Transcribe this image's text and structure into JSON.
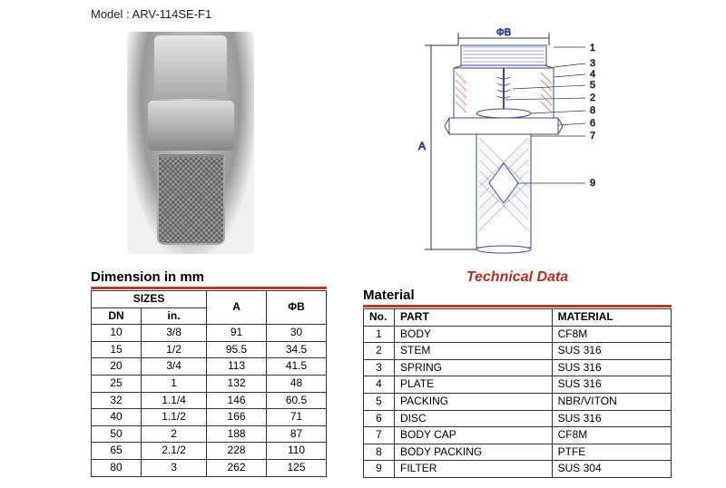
{
  "model_label": "Model : ARV-114SE-F1",
  "diagram": {
    "label_phiB_top": "ΦB",
    "label_A_left": "A",
    "callouts": [
      "1",
      "3",
      "4",
      "5",
      "2",
      "8",
      "6",
      "7",
      "9"
    ],
    "line_color": "#3a4a8a",
    "hatch_color": "#c94a2f"
  },
  "technical_data_title": "Technical Data",
  "dimension": {
    "title": "Dimension in mm",
    "header_group": "SIZES",
    "columns": [
      "DN",
      "in.",
      "A",
      "ΦB"
    ],
    "rows": [
      [
        "10",
        "3/8",
        "91",
        "30"
      ],
      [
        "15",
        "1/2",
        "95.5",
        "34.5"
      ],
      [
        "20",
        "3/4",
        "113",
        "41.5"
      ],
      [
        "25",
        "1",
        "132",
        "48"
      ],
      [
        "32",
        "1.1/4",
        "146",
        "60.5"
      ],
      [
        "40",
        "1.1/2",
        "166",
        "71"
      ],
      [
        "50",
        "2",
        "188",
        "87"
      ],
      [
        "65",
        "2.1/2",
        "228",
        "110"
      ],
      [
        "80",
        "3",
        "262",
        "125"
      ]
    ]
  },
  "material": {
    "title": "Material",
    "columns": [
      "No.",
      "PART",
      "MATERIAL"
    ],
    "rows": [
      [
        "1",
        "BODY",
        "CF8M"
      ],
      [
        "2",
        "STEM",
        "SUS 316"
      ],
      [
        "3",
        "SPRING",
        "SUS 316"
      ],
      [
        "4",
        "PLATE",
        "SUS 316"
      ],
      [
        "5",
        "PACKING",
        "NBR/VITON"
      ],
      [
        "6",
        "DISC",
        "SUS 316"
      ],
      [
        "7",
        "BODY CAP",
        "CF8M"
      ],
      [
        "8",
        "BODY PACKING",
        "PTFE"
      ],
      [
        "9",
        "FILTER",
        "SUS 304"
      ]
    ]
  },
  "colors": {
    "rule_bar": "#b04028",
    "tech_title": "#b03020",
    "border": "#333333"
  }
}
